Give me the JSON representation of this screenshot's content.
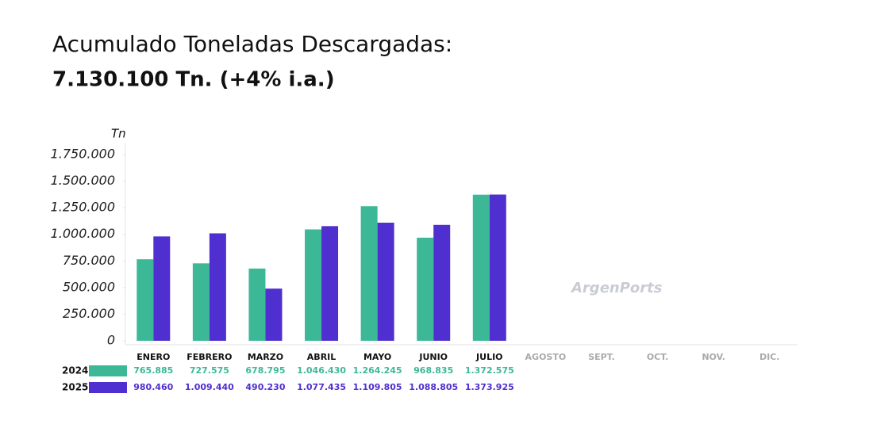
{
  "chart_data": {
    "type": "bar",
    "title": "Acumulado Toneladas Descargadas:",
    "subtitle": "7.130.100 Tn. (+4% i.a.)",
    "y_label": "Tn",
    "watermark": "ArgenPorts",
    "categories": [
      "ENERO",
      "FEBRERO",
      "MARZO",
      "ABRIL",
      "MAYO",
      "JUNIO",
      "JULIO",
      "AGOSTO",
      "SEPT.",
      "OCT.",
      "NOV.",
      "DIC."
    ],
    "series": [
      {
        "name": "2024",
        "color": "#3db896",
        "values": [
          765885,
          727575,
          678795,
          1046430,
          1264245,
          968835,
          1372575,
          null,
          null,
          null,
          null,
          null
        ],
        "value_labels": [
          "765.885",
          "727.575",
          "678.795",
          "1.046.430",
          "1.264.245",
          "968.835",
          "1.372.575",
          null,
          null,
          null,
          null,
          null
        ]
      },
      {
        "name": "2025",
        "color": "#4f2fcf",
        "values": [
          980460,
          1009440,
          490230,
          1077435,
          1109805,
          1088805,
          1373925,
          null,
          null,
          null,
          null,
          null
        ],
        "value_labels": [
          "980.460",
          "1.009.440",
          "490.230",
          "1.077.435",
          "1.109.805",
          "1.088.805",
          "1.373.925",
          null,
          null,
          null,
          null,
          null
        ]
      }
    ],
    "ylim": [
      0,
      1750000
    ],
    "yticks": [
      0,
      {
        "value": 250000,
        "label": "250.000"
      },
      {
        "value": 500000,
        "label": "500.000"
      },
      {
        "value": 750000,
        "label": "750.000"
      },
      {
        "value": 1000000,
        "label": "1.000.000"
      },
      {
        "value": 1250000,
        "label": "1.250.000"
      },
      {
        "value": 1500000,
        "label": "1.500.000"
      },
      {
        "value": 1750000,
        "label": "1.750.000"
      }
    ],
    "grid": false
  }
}
